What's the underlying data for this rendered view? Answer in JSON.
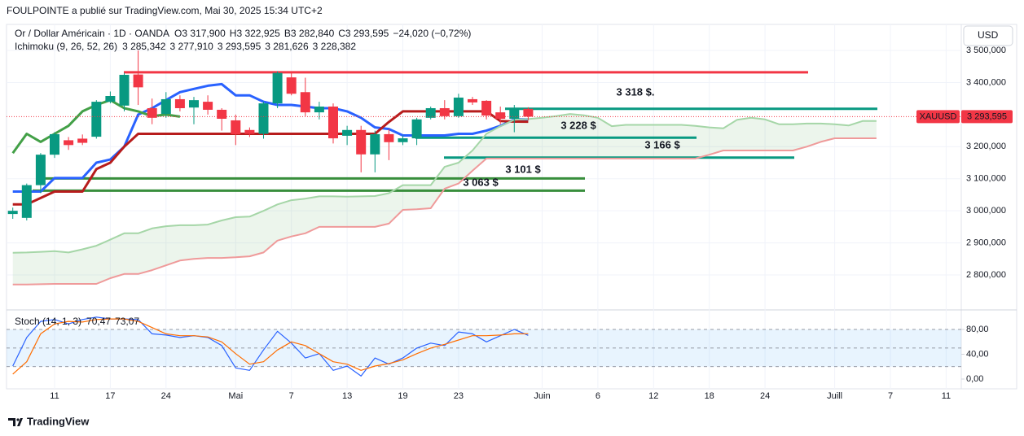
{
  "chart_data": [
    {
      "type": "candlestick",
      "source": "FOULPOINTE a publié sur TradingView.com, Mai 30, 2025 15:34 UTC+2",
      "title": "Or / Dollar Américain · 1D · OANDA",
      "ohlc": [
        {
          "name": "O",
          "label": "3 317,900"
        },
        {
          "name": "H",
          "label": "3 322,925"
        },
        {
          "name": "B",
          "label": "3 282,840"
        },
        {
          "name": "C",
          "label": "3 293,595"
        }
      ],
      "change": "−24,020 (−0,72%)",
      "currency": "USD",
      "brand": "TradingView",
      "up_color": "#089981",
      "down_color": "#f23645",
      "categories": [
        null,
        null,
        null,
        "11",
        null,
        null,
        null,
        "17",
        null,
        null,
        null,
        "24",
        null,
        null,
        null,
        null,
        "Mai",
        null,
        null,
        null,
        "7",
        null,
        null,
        null,
        "13",
        null,
        null,
        null,
        "19",
        null,
        null,
        null,
        "23",
        null,
        null,
        null,
        null,
        null,
        "Juin",
        null,
        null,
        null,
        "6",
        null,
        null,
        null,
        "12",
        null,
        null,
        null,
        "18",
        null,
        null,
        null,
        "24",
        null,
        null,
        null,
        null,
        "Juill",
        null,
        null,
        null,
        "7",
        null,
        null,
        null,
        "11",
        null
      ],
      "open": [
        2990,
        2978,
        3080,
        3175,
        3220,
        3225,
        3231,
        3340,
        3328,
        3425,
        3320,
        3302,
        3348,
        3322,
        3340,
        3315,
        3282,
        3252,
        3240,
        3335,
        3416,
        3370,
        3307,
        3325,
        3234,
        3252,
        3176,
        3239,
        3214,
        3226,
        3290,
        3320,
        3295,
        3348,
        3343,
        3307,
        3287,
        3317.9,
        null,
        null,
        null,
        null,
        null,
        null,
        null,
        null,
        null,
        null,
        null,
        null,
        null,
        null,
        null,
        null,
        null,
        null,
        null,
        null,
        null,
        null,
        null,
        null,
        null,
        null,
        null,
        null,
        null,
        null,
        null
      ],
      "high": [
        3010,
        3085,
        3180,
        3245,
        3230,
        3238,
        3345,
        3372,
        3430,
        3500,
        3350,
        3370,
        3360,
        3355,
        3360,
        3320,
        3300,
        3260,
        3340,
        3435,
        3435,
        3415,
        3340,
        3335,
        3265,
        3265,
        3250,
        3255,
        3235,
        3290,
        3325,
        3345,
        3365,
        3355,
        3345,
        3325,
        3330,
        3322.925,
        null,
        null,
        null,
        null,
        null,
        null,
        null,
        null,
        null,
        null,
        null,
        null,
        null,
        null,
        null,
        null,
        null,
        null,
        null,
        null,
        null,
        null,
        null,
        null,
        null,
        null,
        null,
        null,
        null,
        null,
        null
      ],
      "low": [
        2975,
        2970,
        3055,
        3165,
        3190,
        3205,
        3225,
        3335,
        3310,
        3330,
        3270,
        3290,
        3310,
        3270,
        3300,
        3250,
        3205,
        3230,
        3225,
        3320,
        3360,
        3295,
        3285,
        3210,
        3205,
        3120,
        3120,
        3158,
        3205,
        3205,
        3285,
        3285,
        3290,
        3330,
        3285,
        3270,
        3245,
        3282.84,
        null,
        null,
        null,
        null,
        null,
        null,
        null,
        null,
        null,
        null,
        null,
        null,
        null,
        null,
        null,
        null,
        null,
        null,
        null,
        null,
        null,
        null,
        null,
        null,
        null,
        null,
        null,
        null,
        null,
        null,
        null
      ],
      "close": [
        3000,
        3080,
        3175,
        3239,
        3205,
        3212,
        3340,
        3358,
        3424,
        3385,
        3290,
        3348,
        3320,
        3345,
        3315,
        3287,
        3239,
        3240,
        3335,
        3430,
        3365,
        3307,
        3325,
        3226,
        3252,
        3176,
        3239,
        3214,
        3226,
        3285,
        3320,
        3295,
        3353,
        3338,
        3297,
        3287,
        3315,
        3293.595,
        null,
        null,
        null,
        null,
        null,
        null,
        null,
        null,
        null,
        null,
        null,
        null,
        null,
        null,
        null,
        null,
        null,
        null,
        null,
        null,
        null,
        null,
        null,
        null,
        null,
        null,
        null,
        null,
        null,
        null,
        null
      ],
      "ylim": [
        2693.5,
        3581.2
      ],
      "yticks": [
        {
          "value": 3500,
          "label": "3 500,000"
        },
        {
          "value": 3400,
          "label": "3 400,000"
        },
        {
          "value": 3200,
          "label": "3 200,000"
        },
        {
          "value": 3100,
          "label": "3 100,000"
        },
        {
          "value": 3000,
          "label": "3 000,000"
        },
        {
          "value": 2900,
          "label": "2 900,000"
        },
        {
          "value": 2800,
          "label": "2 800,000"
        }
      ],
      "grid": true,
      "price_tag": {
        "symbol": "XAUUSD",
        "value": 3293.595,
        "label": "3 293,595",
        "color": "#f23645"
      },
      "levels": [
        {
          "value": 3432,
          "color": "#f23645"
        },
        {
          "value": 3318,
          "label": "3 318 $.",
          "color": "#089981"
        },
        {
          "value": 3228,
          "label": "3 228 $",
          "color": "#089981"
        },
        {
          "value": 3166,
          "label": "3 166 $",
          "color": "#089981"
        },
        {
          "value": 3101,
          "label": "3 101 $",
          "color": "#388e3c"
        },
        {
          "value": 3063,
          "label": "3 063 $",
          "color": "#388e3c"
        }
      ],
      "indicator": {
        "name": "Ichimoku (9, 26, 52, 26)",
        "cloud_color": "#43a047",
        "series": [
          {
            "color": "#2962ff",
            "last_label": "3 285,342",
            "values": [
              3060,
              3060,
              3060,
              3102,
              3102,
              3102,
              3150,
              3160,
              3200,
              3300,
              3320,
              3345,
              3370,
              3380,
              3390,
              3395,
              3360,
              3360,
              3340,
              3330,
              3330,
              3325,
              3320,
              3320,
              3310,
              3290,
              3260,
              3255,
              3235,
              3235,
              3235,
              3235,
              3240,
              3240,
              3250,
              3265,
              3285,
              3285.342,
              null,
              null,
              null,
              null,
              null,
              null,
              null,
              null,
              null,
              null,
              null,
              null,
              null,
              null,
              null,
              null,
              null,
              null,
              null,
              null,
              null,
              null,
              null,
              null,
              null,
              null,
              null,
              null,
              null,
              null,
              null
            ]
          },
          {
            "color": "#b71c1c",
            "last_label": "3 277,910",
            "values": [
              3020,
              3020,
              3040,
              3060,
              3060,
              3060,
              3130,
              3150,
              3200,
              3240,
              3240,
              3240,
              3240,
              3240,
              3240,
              3240,
              3240,
              3240,
              3240,
              3240,
              3240,
              3240,
              3240,
              3240,
              3240,
              3240,
              3240,
              3277,
              3310,
              3310,
              3310,
              3310,
              3310,
              3310,
              3310,
              3280,
              3278,
              3277.91,
              null,
              null,
              null,
              null,
              null,
              null,
              null,
              null,
              null,
              null,
              null,
              null,
              null,
              null,
              null,
              null,
              null,
              null,
              null,
              null,
              null,
              null,
              null,
              null,
              null,
              null,
              null,
              null,
              null,
              null,
              null
            ]
          },
          {
            "color": "#43a047",
            "last_label": "3 293,595",
            "values": [
              3180,
              3240,
              3215,
              3240,
              3265,
              3310,
              3330,
              3345,
              3320,
              3310,
              3295,
              3300,
              3293.595,
              null,
              null,
              null,
              null,
              null,
              null,
              null,
              null,
              null,
              null,
              null,
              null,
              null,
              null,
              null,
              null,
              null,
              null,
              null,
              null,
              null,
              null,
              null,
              null,
              null,
              null,
              null,
              null,
              null,
              null,
              null,
              null,
              null,
              null,
              null,
              null,
              null,
              null,
              null,
              null,
              null,
              null,
              null,
              null,
              null,
              null,
              null,
              null,
              null,
              null,
              null,
              null,
              null,
              null,
              null,
              null
            ]
          },
          {
            "color": "#a5d6a7",
            "last_label": "3 281,626",
            "values": [
              2869,
              2870,
              2872,
              2874,
              2870,
              2880,
              2891,
              2910,
              2930,
              2930,
              2945,
              2952,
              2955,
              2955,
              2957,
              2970,
              2980,
              2982,
              3000,
              3020,
              3033,
              3038,
              3045,
              3045,
              3044,
              3045,
              3046,
              3055,
              3080,
              3080,
              3080,
              3137,
              3150,
              3188,
              3240,
              3264,
              3284,
              3286,
              3290,
              3295,
              3302,
              3298,
              3290,
              3264,
              3268,
              3268,
              3268,
              3268,
              3268,
              3265,
              3260,
              3257,
              3284,
              3290,
              3285,
              3270,
              3270,
              3272,
              3272,
              3270,
              3266,
              3280,
              3280,
              null,
              null,
              null,
              null,
              null,
              null
            ]
          },
          {
            "color": "#ef9a9a",
            "last_label": "3 228,382",
            "values": [
              2770,
              2770,
              2771,
              2772,
              2772,
              2772,
              2772,
              2790,
              2803,
              2803,
              2815,
              2830,
              2845,
              2850,
              2853,
              2853,
              2855,
              2858,
              2870,
              2907,
              2920,
              2930,
              2950,
              2950,
              2950,
              2950,
              2950,
              2960,
              3003,
              3005,
              3008,
              3069,
              3085,
              3125,
              3163,
              3163,
              3163,
              3163,
              3163,
              3163,
              3163,
              3163,
              3163,
              3163,
              3163,
              3163,
              3163,
              3163,
              3163,
              3163,
              3175,
              3188,
              3188,
              3188,
              3188,
              3188,
              3188,
              3200,
              3215,
              3226,
              3226,
              3226,
              3226,
              null,
              null,
              null,
              null,
              null,
              null
            ]
          }
        ]
      }
    },
    {
      "type": "line",
      "title": "Stoch (14, 1, 3)",
      "ylim": [
        -11.8,
        108.9
      ],
      "yticks": [
        {
          "value": 80,
          "label": "80,00"
        },
        {
          "value": 40,
          "label": "40,00"
        },
        {
          "value": 0,
          "label": "0,00"
        }
      ],
      "band": [
        20,
        80
      ],
      "midline": 50,
      "band_color": "#2196f3",
      "series": [
        {
          "color": "#2962ff",
          "last_label": "70,47",
          "values": [
            21,
            67,
            93,
            96,
            89,
            96,
            100,
            97,
            97,
            96,
            73,
            71,
            67,
            70,
            67,
            54,
            18,
            14,
            47,
            77,
            58,
            34,
            41,
            14,
            21,
            5,
            34,
            24,
            34,
            50,
            58,
            54,
            76,
            73,
            60,
            70,
            80,
            70.47,
            null,
            null,
            null,
            null,
            null,
            null,
            null,
            null,
            null,
            null,
            null,
            null,
            null,
            null,
            null,
            null,
            null,
            null,
            null,
            null,
            null,
            null,
            null,
            null,
            null,
            null,
            null,
            null,
            null,
            null,
            null
          ]
        },
        {
          "color": "#ff6d00",
          "last_label": "73,07",
          "values": [
            8,
            28,
            73,
            89,
            93,
            92,
            96,
            97,
            97,
            93,
            83,
            73,
            70,
            70,
            68,
            60,
            41,
            24,
            28,
            47,
            60,
            54,
            41,
            28,
            24,
            14,
            21,
            25,
            31,
            41,
            50,
            56,
            63,
            70,
            70,
            71,
            73,
            73.07,
            null,
            null,
            null,
            null,
            null,
            null,
            null,
            null,
            null,
            null,
            null,
            null,
            null,
            null,
            null,
            null,
            null,
            null,
            null,
            null,
            null,
            null,
            null,
            null,
            null,
            null,
            null,
            null,
            null,
            null,
            null
          ]
        }
      ]
    }
  ]
}
